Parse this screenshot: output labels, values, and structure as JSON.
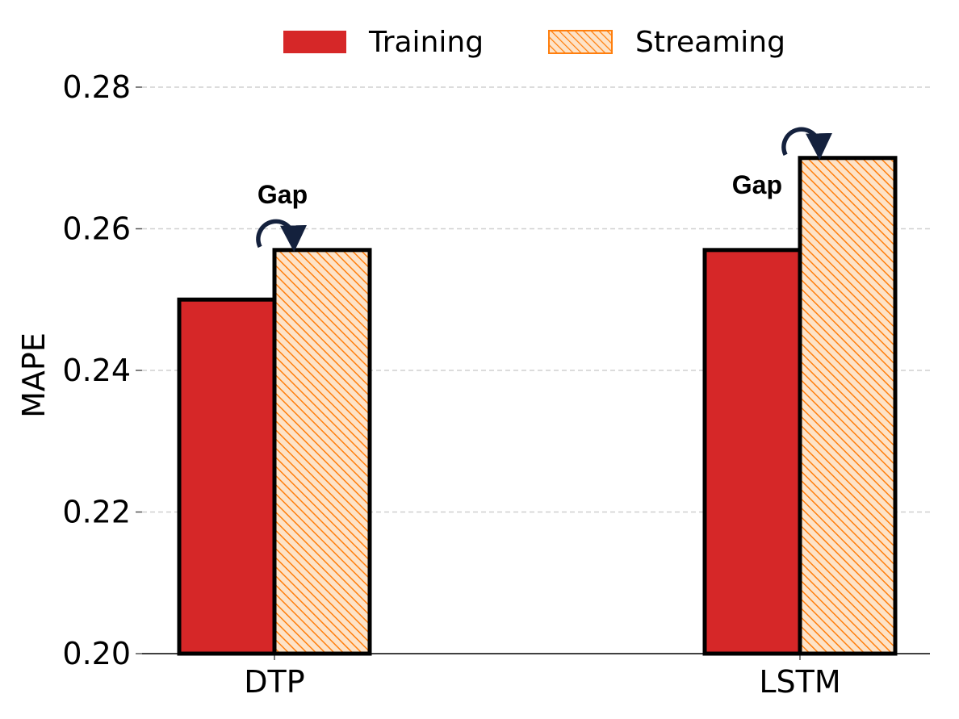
{
  "chart_data": {
    "type": "bar",
    "title": "",
    "xlabel": "",
    "ylabel": "MAPE",
    "ylim": [
      0.2,
      0.28
    ],
    "yticks": [
      "0.20",
      "0.22",
      "0.24",
      "0.26",
      "0.28"
    ],
    "ytick_values": [
      0.2,
      0.22,
      0.24,
      0.26,
      0.28
    ],
    "grid": "horizontal dashed",
    "legend_position": "top-center",
    "categories": [
      "DTP",
      "LSTM"
    ],
    "series": [
      {
        "name": "Training",
        "values": [
          0.25,
          0.257
        ],
        "color": "#d62728",
        "pattern": "solid"
      },
      {
        "name": "Streaming",
        "values": [
          0.257,
          0.27
        ],
        "color": "#ff7f0e",
        "pattern": "hatched"
      }
    ],
    "annotations": [
      {
        "text": "Gap",
        "category": "DTP"
      },
      {
        "text": "Gap",
        "category": "LSTM"
      }
    ]
  }
}
